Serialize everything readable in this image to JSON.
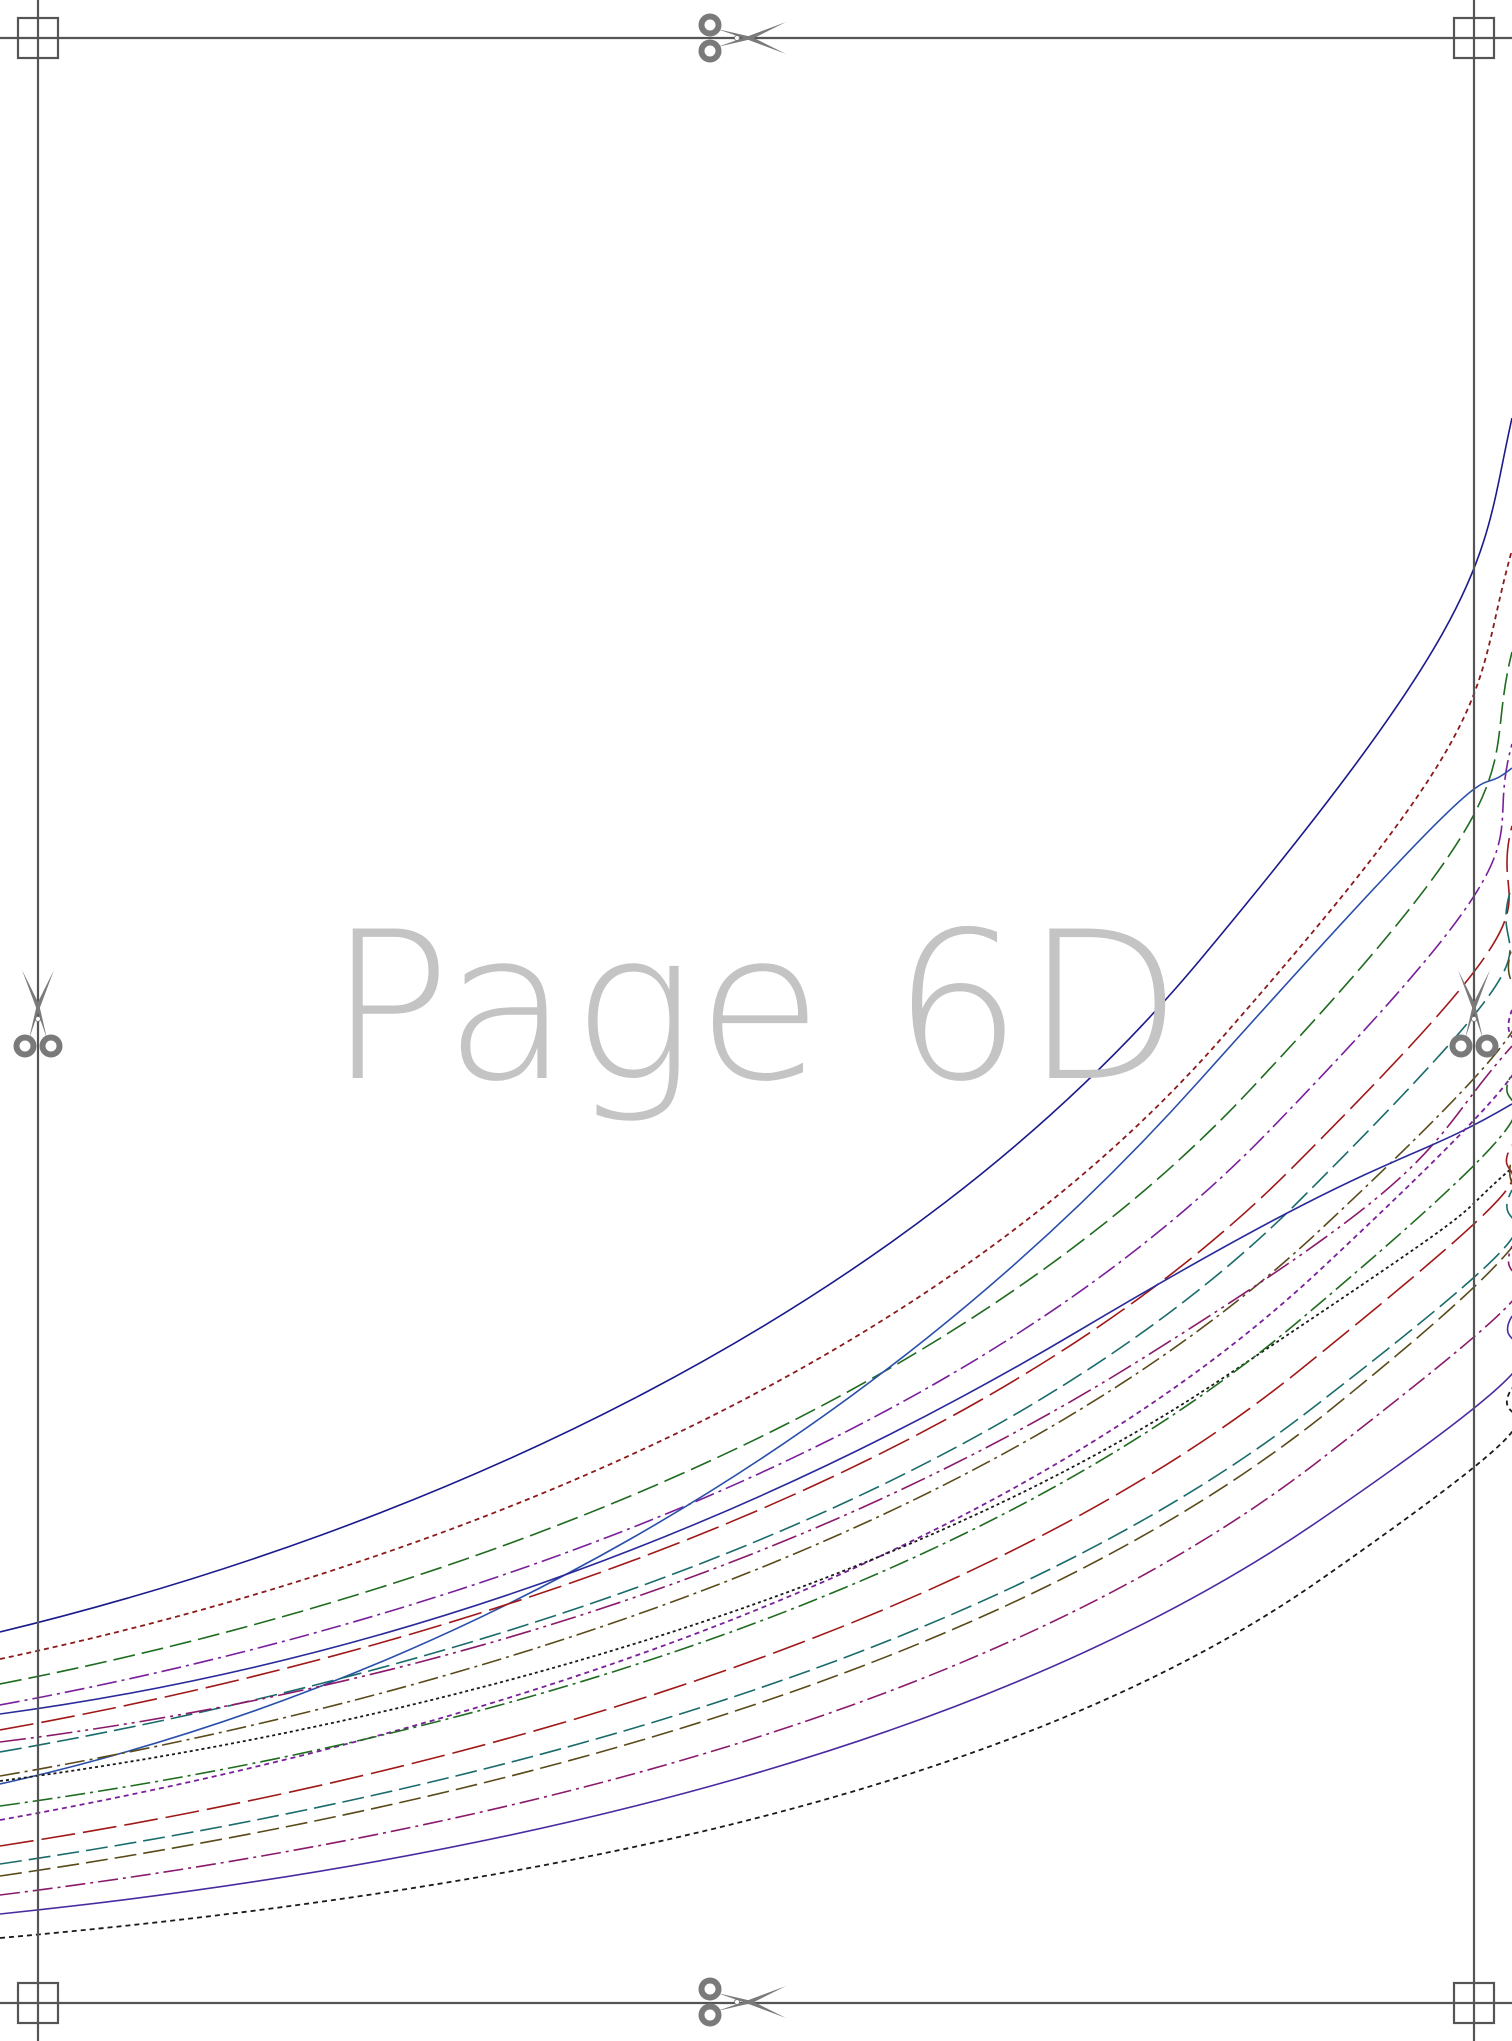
{
  "page": {
    "label": "Page 6D",
    "label_color": "#c4c4c4",
    "background": "#ffffff"
  },
  "frame": {
    "line_color": "#555555",
    "icons": {
      "scissors": "scissors-icon",
      "registration": "registration-square-icon"
    },
    "scissors_color": "#7a7a7a"
  },
  "pattern_lines": [
    {
      "id": "line-01",
      "color": "#1a1a8c",
      "style": "solid"
    },
    {
      "id": "line-02",
      "color": "#8b1a1a",
      "style": "dotted"
    },
    {
      "id": "line-03",
      "color": "#1f6b1f",
      "style": "dashed"
    },
    {
      "id": "line-04",
      "color": "#7a1f9a",
      "style": "dash-dot"
    },
    {
      "id": "line-05",
      "color": "#2a4faa",
      "style": "solid"
    },
    {
      "id": "line-06",
      "color": "#a01818",
      "style": "long-dash"
    },
    {
      "id": "line-07",
      "color": "#1a6b6b",
      "style": "dashed"
    },
    {
      "id": "line-08",
      "color": "#5a4a1a",
      "style": "dash-dot"
    },
    {
      "id": "line-09",
      "color": "#8a1a6b",
      "style": "dash-dot-dot"
    },
    {
      "id": "line-10",
      "color": "#2a2a9a",
      "style": "solid"
    },
    {
      "id": "line-11",
      "color": "#7a1f9a",
      "style": "dotted"
    },
    {
      "id": "line-12",
      "color": "#1a1a1a",
      "style": "fine-dot"
    },
    {
      "id": "line-13",
      "color": "#1f6b1f",
      "style": "dash-dot"
    },
    {
      "id": "line-14",
      "color": "#a01818",
      "style": "long-dash"
    },
    {
      "id": "line-15",
      "color": "#1a6b6b",
      "style": "dashed"
    },
    {
      "id": "line-16",
      "color": "#5a4a1a",
      "style": "dashed"
    },
    {
      "id": "line-17",
      "color": "#8a1a6b",
      "style": "dash-dot"
    },
    {
      "id": "line-18",
      "color": "#4a2aa0",
      "style": "solid"
    },
    {
      "id": "line-19",
      "color": "#1a1a1a",
      "style": "dotted"
    }
  ]
}
